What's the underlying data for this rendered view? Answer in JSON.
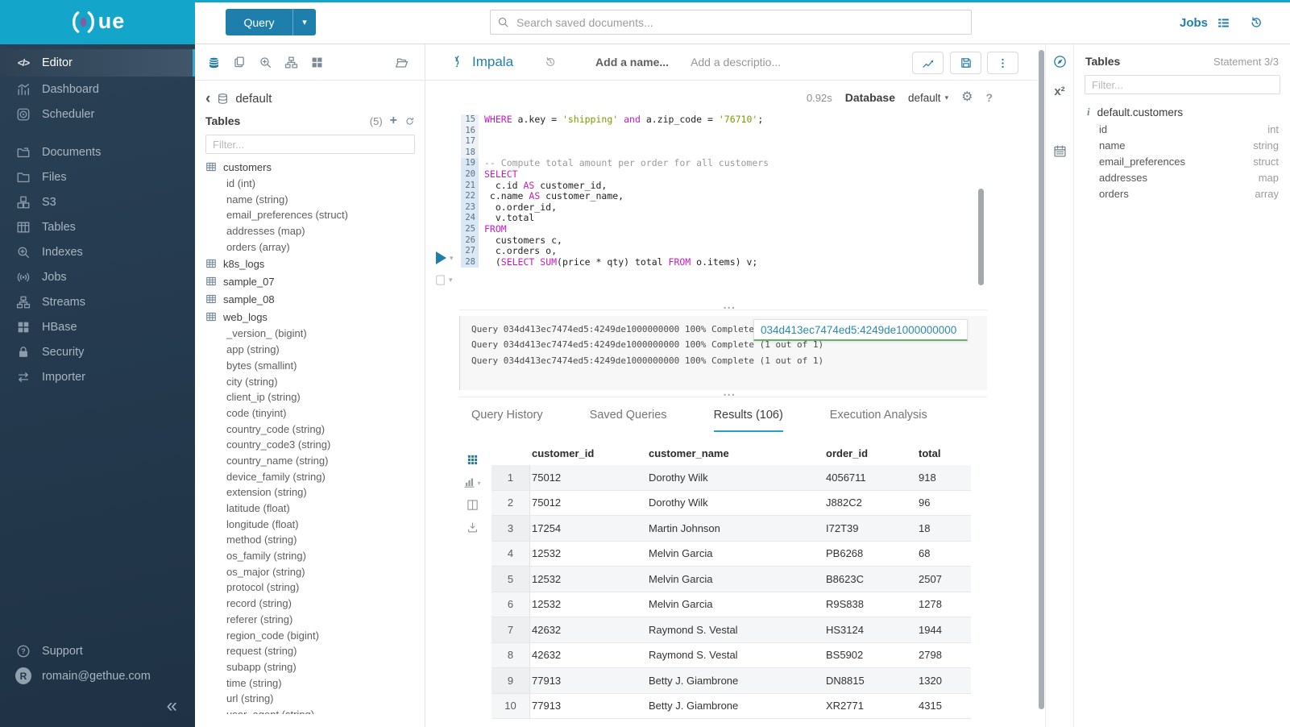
{
  "ui": {
    "caret": "▾",
    "gear": "⚙",
    "help": "?",
    "collapse": "«",
    "back": "‹",
    "plus": "+",
    "sup2": "x²",
    "code_glyph": "</>",
    "dots": "...",
    "brand_suffix": "ue",
    "user_initial": "R",
    "accent_cyan": "#14a5ca",
    "button_blue": "#1e7fad",
    "link_blue": "#2180a9",
    "tab_underline": "#2aa0bf",
    "popover_green": "#67b168"
  },
  "sidebar": {
    "items": [
      {
        "label": "Editor",
        "icon": "editor",
        "active": true
      },
      {
        "label": "Dashboard",
        "icon": "dashboard"
      },
      {
        "label": "Scheduler",
        "icon": "scheduler"
      },
      {
        "label": "Documents",
        "icon": "documents",
        "gap": true
      },
      {
        "label": "Files",
        "icon": "files"
      },
      {
        "label": "S3",
        "icon": "s3"
      },
      {
        "label": "Tables",
        "icon": "tables"
      },
      {
        "label": "Indexes",
        "icon": "indexes"
      },
      {
        "label": "Jobs",
        "icon": "jobs"
      },
      {
        "label": "Streams",
        "icon": "streams"
      },
      {
        "label": "HBase",
        "icon": "hbase"
      },
      {
        "label": "Security",
        "icon": "security"
      },
      {
        "label": "Importer",
        "icon": "importer"
      }
    ],
    "support_label": "Support",
    "user_email": "romain@gethue.com"
  },
  "topbar": {
    "query_label": "Query",
    "search_placeholder": "Search saved documents...",
    "jobs_label": "Jobs"
  },
  "assist_left": {
    "actions": [
      {
        "icon": "db",
        "active": true
      },
      {
        "icon": "copy"
      },
      {
        "icon": "zoomin"
      },
      {
        "icon": "sitemap"
      },
      {
        "icon": "grid4"
      },
      {
        "icon": "folderopen",
        "right": true
      }
    ],
    "breadcrumb": "default",
    "tables_title": "Tables",
    "tables_count": "(5)",
    "filter_placeholder": "Filter...",
    "tree": [
      {
        "name": "customers",
        "columns": [
          "id (int)",
          "name (string)",
          "email_preferences (struct)",
          "addresses (map)",
          "orders (array)"
        ]
      },
      {
        "name": "k8s_logs",
        "columns": []
      },
      {
        "name": "sample_07",
        "columns": []
      },
      {
        "name": "sample_08",
        "columns": []
      },
      {
        "name": "web_logs",
        "columns": [
          "_version_ (bigint)",
          "app (string)",
          "bytes (smallint)",
          "city (string)",
          "client_ip (string)",
          "code (tinyint)",
          "country_code (string)",
          "country_code3 (string)",
          "country_name (string)",
          "device_family (string)",
          "extension (string)",
          "latitude (float)",
          "longitude (float)",
          "method (string)",
          "os_family (string)",
          "os_major (string)",
          "protocol (string)",
          "record (string)",
          "referer (string)",
          "region_code (bigint)",
          "request (string)",
          "subapp (string)",
          "time (string)",
          "url (string)",
          "user_agent (string)"
        ]
      }
    ]
  },
  "editor": {
    "engine": "Impala",
    "name_placeholder": "Add a name...",
    "desc_placeholder": "Add a descriptio...",
    "duration": "0.92s",
    "database_label": "Database",
    "database_value": "default",
    "lines": [
      {
        "n": "15",
        "hl": false,
        "tokens": [
          [
            "kw",
            "WHERE"
          ],
          [
            "pl",
            " a.key = "
          ],
          [
            "str",
            "'shipping'"
          ],
          [
            "pl",
            " "
          ],
          [
            "kw",
            "and"
          ],
          [
            "pl",
            " a.zip_code = "
          ],
          [
            "str",
            "'76710'"
          ],
          [
            "pl",
            ";"
          ]
        ]
      },
      {
        "n": "16",
        "hl": false,
        "tokens": []
      },
      {
        "n": "17",
        "hl": false,
        "tokens": []
      },
      {
        "n": "18",
        "hl": false,
        "tokens": []
      },
      {
        "n": "19",
        "hl": true,
        "tokens": [
          [
            "com",
            "-- Compute total amount per order for all customers"
          ]
        ]
      },
      {
        "n": "20",
        "hl": true,
        "tokens": [
          [
            "kw",
            "SELECT"
          ]
        ]
      },
      {
        "n": "21",
        "hl": true,
        "tokens": [
          [
            "pl",
            "  c.id "
          ],
          [
            "kw",
            "AS"
          ],
          [
            "pl",
            " customer_id,"
          ]
        ]
      },
      {
        "n": "22",
        "hl": true,
        "tokens": [
          [
            "pl",
            " c.name "
          ],
          [
            "kw",
            "AS"
          ],
          [
            "pl",
            " customer_name,"
          ]
        ]
      },
      {
        "n": "23",
        "hl": true,
        "tokens": [
          [
            "pl",
            "  o.order_id,"
          ]
        ]
      },
      {
        "n": "24",
        "hl": true,
        "tokens": [
          [
            "pl",
            "  v.total"
          ]
        ]
      },
      {
        "n": "25",
        "hl": true,
        "tokens": [
          [
            "kw",
            "FROM"
          ]
        ]
      },
      {
        "n": "26",
        "hl": true,
        "tokens": [
          [
            "pl",
            "  customers c,"
          ]
        ]
      },
      {
        "n": "27",
        "hl": true,
        "tokens": [
          [
            "pl",
            "  c.orders o,"
          ]
        ]
      },
      {
        "n": "28",
        "hl": true,
        "tokens": [
          [
            "pl",
            "  ("
          ],
          [
            "kw",
            "SELECT"
          ],
          [
            "pl",
            " "
          ],
          [
            "kw",
            "SUM"
          ],
          [
            "pl",
            "(price * qty) total "
          ],
          [
            "kw",
            "FROM"
          ],
          [
            "pl",
            " o.items) v;"
          ]
        ]
      }
    ]
  },
  "logs": {
    "lines": [
      "Query 034d413ec7474ed5:4249de1000000000 100% Complete (1 out of 1)",
      "Query 034d413ec7474ed5:4249de1000000000 100% Complete (1 out of 1)",
      "Query 034d413ec7474ed5:4249de1000000000 100% Complete (1 out of 1)"
    ],
    "popover_text": "034d413ec7474ed5:4249de1000000000"
  },
  "tabs": [
    {
      "label": "Query History",
      "active": false
    },
    {
      "label": "Saved Queries",
      "active": false
    },
    {
      "label": "Results (106)",
      "active": true
    },
    {
      "label": "Execution Analysis",
      "active": false
    }
  ],
  "results": {
    "rail": [
      {
        "icon": "grid9",
        "active": true
      },
      {
        "icon": "chartbars",
        "caret": true
      },
      {
        "icon": "columns"
      },
      {
        "icon": "download"
      }
    ],
    "headers": [
      "customer_id",
      "customer_name",
      "order_id",
      "total"
    ],
    "rows": [
      [
        "1",
        "75012",
        "Dorothy Wilk",
        "4056711",
        "918"
      ],
      [
        "2",
        "75012",
        "Dorothy Wilk",
        "J882C2",
        "96"
      ],
      [
        "3",
        "17254",
        "Martin Johnson",
        "I72T39",
        "18"
      ],
      [
        "4",
        "12532",
        "Melvin Garcia",
        "PB6268",
        "68"
      ],
      [
        "5",
        "12532",
        "Melvin Garcia",
        "B8623C",
        "2507"
      ],
      [
        "6",
        "12532",
        "Melvin Garcia",
        "R9S838",
        "1278"
      ],
      [
        "7",
        "42632",
        "Raymond S. Vestal",
        "HS3124",
        "1944"
      ],
      [
        "8",
        "42632",
        "Raymond S. Vestal",
        "BS5902",
        "2798"
      ],
      [
        "9",
        "77913",
        "Betty J. Giambrone",
        "DN8815",
        "1320"
      ],
      [
        "10",
        "77913",
        "Betty J. Giambrone",
        "XR2771",
        "4315"
      ]
    ]
  },
  "assist_right": {
    "rail": [
      {
        "icon": "compass",
        "active": true
      },
      {
        "icon": "functions"
      },
      {
        "icon": "docs"
      },
      {
        "icon": "calendar"
      }
    ],
    "title": "Tables",
    "statement": "Statement 3/3",
    "filter_placeholder": "Filter...",
    "table_name": "default.customers",
    "columns": [
      {
        "name": "id",
        "type": "int"
      },
      {
        "name": "name",
        "type": "string"
      },
      {
        "name": "email_preferences",
        "type": "struct"
      },
      {
        "name": "addresses",
        "type": "map"
      },
      {
        "name": "orders",
        "type": "array"
      }
    ]
  }
}
